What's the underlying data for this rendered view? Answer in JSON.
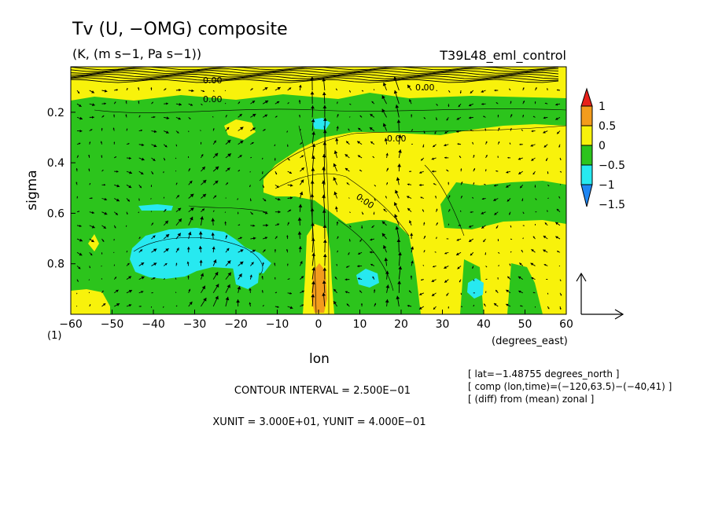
{
  "chart_data": {
    "type": "heatmap",
    "title": "Tv (U, −OMG) composite",
    "subtitle": "(K, (m s−1, Pa s−1))",
    "run_label": "T39L48_eml_control",
    "xlabel": "lon",
    "xunit_label": "(degrees_east)",
    "ylabel": "sigma",
    "panel_label": "(1)",
    "xlim": [
      -60,
      60
    ],
    "ylim": [
      1.0,
      0.02
    ],
    "x_ticks": [
      "−60",
      "−50",
      "−40",
      "−30",
      "−20",
      "−10",
      "0",
      "10",
      "20",
      "30",
      "40",
      "50",
      "60"
    ],
    "y_ticks": [
      "0.2",
      "0.4",
      "0.6",
      "0.8"
    ],
    "colorbar": {
      "levels": [
        "1",
        "0.5",
        "0",
        "−0.5",
        "−1",
        "−1.5"
      ],
      "colors": [
        "#e8201a",
        "#f39c1c",
        "#f8f20b",
        "#2cc41c",
        "#27e9f0",
        "#1f86f2"
      ]
    },
    "colorbar_colors_bins": [
      "#e8201a",
      "#f39c1c",
      "#f8f20b",
      "#2cc41c",
      "#27e9f0",
      "#1f86f2"
    ],
    "contour_labels": [
      "0.00"
    ],
    "info_lines": [
      "[ lat=−1.48755 degrees_north ]",
      "[ comp (lon,time)=(−120,63.5)−(−40,41) ]",
      "[ (diff) from (mean) zonal ]"
    ],
    "contour_interval": "CONTOUR INTERVAL = 2.500E−01",
    "units_line": "XUNIT = 3.000E+01, YUNIT = 4.000E−01",
    "regions": [
      {
        "label": "warm anomaly upper right",
        "lon": [
          -8,
          60
        ],
        "sigma": [
          0.23,
          0.55
        ],
        "value": 0.25
      },
      {
        "label": "warm anomaly lower east",
        "lon": [
          25,
          60
        ],
        "sigma": [
          0.55,
          1.0
        ],
        "value": 0.25
      },
      {
        "label": "warm anomaly near surface",
        "lon": [
          -60,
          -48
        ],
        "sigma": [
          0.87,
          1.0
        ],
        "value": 0.25
      },
      {
        "label": "warm band top",
        "lon": [
          -60,
          60
        ],
        "sigma": [
          0.02,
          0.12
        ],
        "value": 0.25
      },
      {
        "label": "cold anomaly west",
        "lon": [
          -42,
          -18
        ],
        "sigma": [
          0.64,
          0.83
        ],
        "value": -0.75
      },
      {
        "label": "strong warm column",
        "lon": [
          -2,
          4
        ],
        "sigma": [
          0.8,
          1.0
        ],
        "value": 0.75
      }
    ]
  }
}
